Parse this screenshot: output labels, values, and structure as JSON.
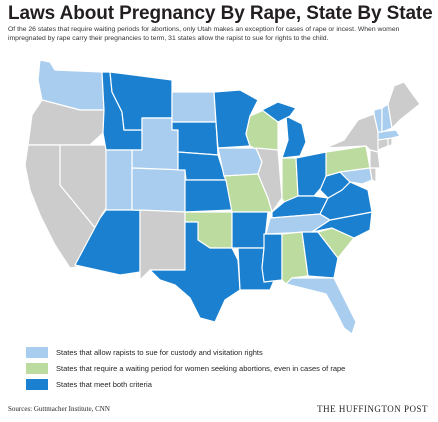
{
  "title": "Laws About Pregnancy By Rape, State By State",
  "subtitle": "Of the 26 states that require waiting periods for abortions, only Utah makes an exception for cases of rape or incest. When women impregnated by rape carry their pregnancies to term, 31 states allow the rapist to sue for rights to the child.",
  "colors": {
    "custody": "#a9cdee",
    "waiting": "#bcdb9f",
    "both": "#1a80cf",
    "neither": "#cccccc"
  },
  "legend": [
    {
      "key": "custody",
      "label": "States that allow rapists to sue for custody and visitation rights"
    },
    {
      "key": "waiting",
      "label": "States that require a waiting period for women seeking abortions, even in cases of rape"
    },
    {
      "key": "both",
      "label": "States that meet both criteria"
    }
  ],
  "states": {
    "WA": "custody",
    "OR": "neither",
    "CA": "neither",
    "NV": "neither",
    "ID": "both",
    "MT": "both",
    "WY": "custody",
    "UT": "custody",
    "AZ": "both",
    "CO": "custody",
    "NM": "neither",
    "ND": "custody",
    "SD": "both",
    "NE": "both",
    "KS": "both",
    "OK": "waiting",
    "TX": "both",
    "MN": "both",
    "IA": "custody",
    "MO": "waiting",
    "AR": "both",
    "LA": "both",
    "WI": "waiting",
    "IL": "neither",
    "MI": "both",
    "IN": "waiting",
    "OH": "both",
    "KY": "both",
    "TN": "custody",
    "MS": "both",
    "AL": "waiting",
    "GA": "both",
    "FL": "custody",
    "SC": "waiting",
    "NC": "both",
    "VA": "both",
    "WV": "both",
    "PA": "waiting",
    "NY": "neither",
    "ME": "neither",
    "VT": "custody",
    "NH": "custody",
    "MA": "custody",
    "CT": "neither",
    "RI": "neither",
    "NJ": "neither",
    "DE": "neither",
    "MD": "custody"
  },
  "footer": {
    "sources": "Sources: Guttmacher Institute, CNN",
    "brand": "THE HUFFINGTON POST"
  }
}
